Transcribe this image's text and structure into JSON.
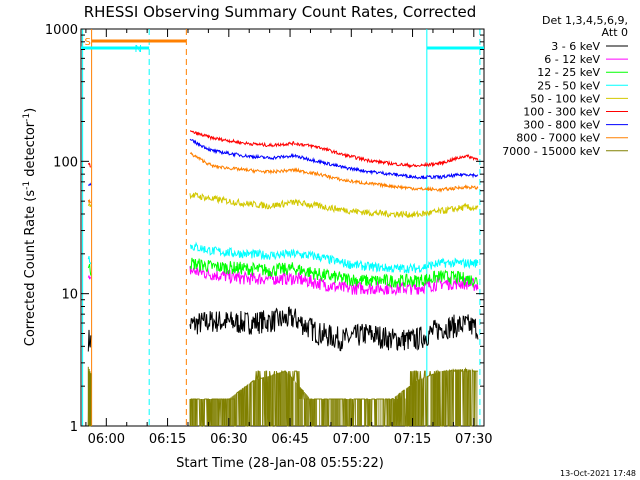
{
  "chart_data": {
    "type": "line",
    "title": "RHESSI Observing Summary Count Rates, Corrected",
    "xlabel": "Start Time (28-Jan-08 05:55:22)",
    "ylabel": "Corrected Count Rate (s⁻¹ detector⁻¹)",
    "ylabel_main": "Corrected Count Rate (s",
    "ylabel_sup1": "-1",
    "ylabel_mid": " detector",
    "ylabel_sup2": "-1",
    "ylabel_end": ")",
    "x_ticks": [
      "06:00",
      "06:15",
      "06:30",
      "06:45",
      "07:00",
      "07:15",
      "07:30"
    ],
    "x_tick_minutes": [
      0,
      15,
      30,
      45,
      60,
      75,
      90
    ],
    "y_ticks": [
      "1",
      "10",
      "100",
      "1000"
    ],
    "xlim_minutes": [
      -6.2,
      92.5
    ],
    "ylim": [
      1,
      1000
    ],
    "yscale": "log",
    "grid": false,
    "legend_position": "right",
    "legend_header": "Det 1,3,4,5,6,9,",
    "legend_header2": "Att 0",
    "series": [
      {
        "name": "3 - 6 keV",
        "color": "#000000",
        "points": [
          [
            -4.4,
            4.5
          ],
          [
            -3.8,
            4.4
          ],
          [
            20.5,
            5.8
          ],
          [
            26,
            6.2
          ],
          [
            34,
            6.0
          ],
          [
            40,
            6.2
          ],
          [
            46,
            6.5
          ],
          [
            52,
            5.0
          ],
          [
            58,
            4.5
          ],
          [
            64,
            5.0
          ],
          [
            70,
            4.5
          ],
          [
            76,
            4.5
          ],
          [
            82,
            5.5
          ],
          [
            88,
            5.8
          ],
          [
            91,
            5.5
          ]
        ]
      },
      {
        "name": "6 - 12 keV",
        "color": "#ff00ff",
        "points": [
          [
            -4.4,
            13
          ],
          [
            -3.8,
            12
          ],
          [
            20.5,
            15
          ],
          [
            26,
            14
          ],
          [
            34,
            13
          ],
          [
            40,
            13
          ],
          [
            46,
            13
          ],
          [
            52,
            12
          ],
          [
            58,
            11
          ],
          [
            64,
            11
          ],
          [
            70,
            11
          ],
          [
            76,
            11
          ],
          [
            82,
            12
          ],
          [
            88,
            12
          ],
          [
            91,
            11.5
          ]
        ]
      },
      {
        "name": "12 - 25 keV",
        "color": "#00ff00",
        "points": [
          [
            -4.4,
            16
          ],
          [
            -3.8,
            15
          ],
          [
            20.5,
            17
          ],
          [
            26,
            16
          ],
          [
            34,
            15.5
          ],
          [
            40,
            15
          ],
          [
            46,
            15.5
          ],
          [
            52,
            14
          ],
          [
            58,
            13
          ],
          [
            64,
            12.5
          ],
          [
            70,
            12.5
          ],
          [
            76,
            12.5
          ],
          [
            82,
            13.5
          ],
          [
            88,
            13
          ],
          [
            91,
            12.5
          ]
        ]
      },
      {
        "name": "25 - 50 keV",
        "color": "#00ffff",
        "points": [
          [
            -4.4,
            19
          ],
          [
            -3.8,
            18
          ],
          [
            20.5,
            23
          ],
          [
            26,
            21
          ],
          [
            34,
            20
          ],
          [
            40,
            19.5
          ],
          [
            46,
            20
          ],
          [
            52,
            19
          ],
          [
            58,
            17
          ],
          [
            64,
            16
          ],
          [
            70,
            15.5
          ],
          [
            76,
            15.5
          ],
          [
            82,
            17
          ],
          [
            88,
            17
          ],
          [
            91,
            17
          ]
        ]
      },
      {
        "name": "50 - 100 keV",
        "color": "#d2c800",
        "points": [
          [
            -4.4,
            48
          ],
          [
            -3.8,
            47
          ],
          [
            20.5,
            56
          ],
          [
            26,
            52
          ],
          [
            34,
            48
          ],
          [
            40,
            46
          ],
          [
            46,
            49
          ],
          [
            52,
            46
          ],
          [
            58,
            43
          ],
          [
            64,
            41
          ],
          [
            70,
            40
          ],
          [
            76,
            39.5
          ],
          [
            82,
            42
          ],
          [
            88,
            45
          ],
          [
            91,
            44
          ]
        ]
      },
      {
        "name": "100 - 300 keV",
        "color": "#ff0000",
        "points": [
          [
            -4.4,
            95
          ],
          [
            -3.8,
            92
          ],
          [
            20.5,
            168
          ],
          [
            26,
            150
          ],
          [
            34,
            137
          ],
          [
            40,
            132
          ],
          [
            46,
            137
          ],
          [
            52,
            128
          ],
          [
            58,
            112
          ],
          [
            64,
            102
          ],
          [
            70,
            96
          ],
          [
            76,
            92
          ],
          [
            82,
            97
          ],
          [
            88,
            110
          ],
          [
            91,
            104
          ]
        ]
      },
      {
        "name": "300 - 800 keV",
        "color": "#0000ff",
        "points": [
          [
            -4.4,
            68
          ],
          [
            -3.8,
            66
          ],
          [
            20.5,
            145
          ],
          [
            26,
            120
          ],
          [
            34,
            110
          ],
          [
            40,
            106
          ],
          [
            46,
            110
          ],
          [
            52,
            100
          ],
          [
            58,
            90
          ],
          [
            64,
            84
          ],
          [
            70,
            80
          ],
          [
            76,
            76
          ],
          [
            82,
            76
          ],
          [
            88,
            80
          ],
          [
            91,
            78
          ]
        ]
      },
      {
        "name": "800 - 7000 keV",
        "color": "#ff8000",
        "points": [
          [
            -4.4,
            50
          ],
          [
            -3.8,
            49
          ],
          [
            20.5,
            115
          ],
          [
            26,
            92
          ],
          [
            34,
            86
          ],
          [
            40,
            83
          ],
          [
            46,
            86
          ],
          [
            52,
            80
          ],
          [
            58,
            72
          ],
          [
            64,
            68
          ],
          [
            70,
            65
          ],
          [
            76,
            62
          ],
          [
            82,
            61
          ],
          [
            88,
            64
          ],
          [
            91,
            63
          ]
        ]
      },
      {
        "name": "7000 - 15000 keV",
        "color": "#808000",
        "points": [
          [
            -4.4,
            2.8
          ],
          [
            -3.8,
            2.5
          ],
          [
            20.5,
            1.6
          ],
          [
            30,
            1.6
          ],
          [
            36,
            2.2
          ],
          [
            44,
            2.6
          ],
          [
            50,
            1.6
          ],
          [
            58,
            1.6
          ],
          [
            64,
            1.6
          ],
          [
            70,
            1.6
          ],
          [
            76,
            2.2
          ],
          [
            82,
            2.6
          ],
          [
            88,
            2.7
          ],
          [
            91,
            2.6
          ]
        ]
      }
    ],
    "flags": {
      "S_label": "S",
      "N_label": "N"
    }
  },
  "footer_date": "13-Oct-2021 17:48"
}
